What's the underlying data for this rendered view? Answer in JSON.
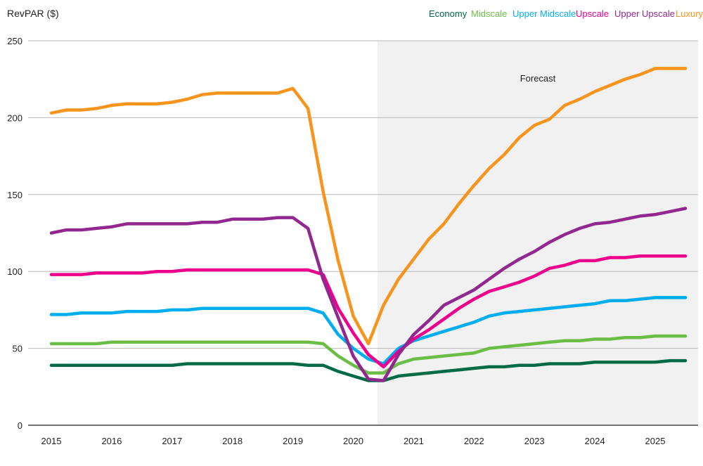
{
  "chart_data": {
    "type": "line",
    "title": "",
    "ylabel": "RevPAR ($)",
    "xlabel": "",
    "ylim": [
      0,
      250
    ],
    "xlim": [
      2015,
      2025.72
    ],
    "yticks": [
      0,
      50,
      100,
      150,
      200,
      250
    ],
    "xticks": [
      2015,
      2016,
      2017,
      2018,
      2019,
      2020,
      2021,
      2022,
      2023,
      2024,
      2025
    ],
    "grid": "horizontal",
    "legend_position": "top-right",
    "forecast_region": {
      "label": "Forecast",
      "start": 2020.4,
      "end": 2025.72,
      "color": "#f0f1f0"
    },
    "x": [
      2015.0,
      2015.25,
      2015.5,
      2015.75,
      2016.0,
      2016.25,
      2016.5,
      2016.75,
      2017.0,
      2017.25,
      2017.5,
      2017.75,
      2018.0,
      2018.25,
      2018.5,
      2018.75,
      2019.0,
      2019.25,
      2019.5,
      2019.75,
      2020.0,
      2020.25,
      2020.5,
      2020.75,
      2021.0,
      2021.25,
      2021.5,
      2021.75,
      2022.0,
      2022.25,
      2022.5,
      2022.75,
      2023.0,
      2023.25,
      2023.5,
      2023.75,
      2024.0,
      2024.25,
      2024.5,
      2024.75,
      2025.0,
      2025.25,
      2025.5
    ],
    "series": [
      {
        "name": "Economy",
        "color": "#006b45",
        "values": [
          39,
          39,
          39,
          39,
          39,
          39,
          39,
          39,
          39,
          40,
          40,
          40,
          40,
          40,
          40,
          40,
          40,
          39,
          39,
          35,
          32,
          29,
          29,
          32,
          33,
          34,
          35,
          36,
          37,
          38,
          38,
          39,
          39,
          40,
          40,
          40,
          41,
          41,
          41,
          41,
          41,
          42,
          42
        ]
      },
      {
        "name": "Midscale",
        "color": "#6abd45",
        "values": [
          53,
          53,
          53,
          53,
          54,
          54,
          54,
          54,
          54,
          54,
          54,
          54,
          54,
          54,
          54,
          54,
          54,
          54,
          53,
          45,
          39,
          34,
          34,
          40,
          43,
          44,
          45,
          46,
          47,
          50,
          51,
          52,
          53,
          54,
          55,
          55,
          56,
          56,
          57,
          57,
          58,
          58,
          58
        ]
      },
      {
        "name": "Upper Midscale",
        "color": "#00aeef",
        "values": [
          72,
          72,
          73,
          73,
          73,
          74,
          74,
          74,
          75,
          75,
          76,
          76,
          76,
          76,
          76,
          76,
          76,
          76,
          73,
          59,
          50,
          43,
          40,
          50,
          55,
          58,
          61,
          64,
          67,
          71,
          73,
          74,
          75,
          76,
          77,
          78,
          79,
          81,
          81,
          82,
          83,
          83,
          83
        ]
      },
      {
        "name": "Upscale",
        "color": "#ec008c",
        "values": [
          98,
          98,
          98,
          99,
          99,
          99,
          99,
          100,
          100,
          101,
          101,
          101,
          101,
          101,
          101,
          101,
          101,
          101,
          98,
          76,
          60,
          46,
          38,
          48,
          56,
          62,
          69,
          76,
          82,
          87,
          90,
          93,
          97,
          102,
          104,
          107,
          107,
          109,
          109,
          110,
          110,
          110,
          110
        ]
      },
      {
        "name": "Upper Upscale",
        "color": "#92278f",
        "values": [
          125,
          127,
          127,
          128,
          129,
          131,
          131,
          131,
          131,
          131,
          132,
          132,
          134,
          134,
          134,
          135,
          135,
          128,
          95,
          70,
          45,
          30,
          29,
          46,
          59,
          68,
          78,
          83,
          88,
          95,
          102,
          108,
          113,
          119,
          124,
          128,
          131,
          132,
          134,
          136,
          137,
          139,
          141
        ]
      },
      {
        "name": "Luxury",
        "color": "#f7941d",
        "values": [
          203,
          205,
          205,
          206,
          208,
          209,
          209,
          209,
          210,
          212,
          215,
          216,
          216,
          216,
          216,
          216,
          219,
          206,
          152,
          107,
          71,
          53,
          78,
          95,
          108,
          121,
          131,
          144,
          156,
          167,
          176,
          187,
          195,
          199,
          208,
          212,
          217,
          221,
          225,
          228,
          232,
          232,
          232
        ]
      }
    ]
  }
}
